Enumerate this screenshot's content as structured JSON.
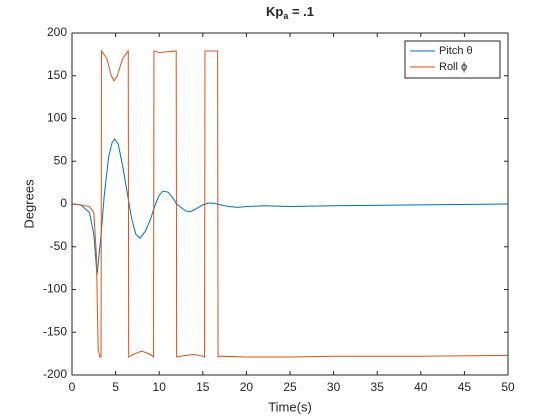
{
  "chart_data": {
    "type": "line",
    "title": "Kp",
    "title_subscript": "a",
    "title_suffix": " = .1",
    "xlabel": "Time(s)",
    "ylabel": "Degrees",
    "xlim": [
      0,
      50
    ],
    "xticks": [
      0,
      5,
      10,
      15,
      20,
      25,
      30,
      35,
      40,
      45,
      50
    ],
    "ylim": [
      -200,
      200
    ],
    "yticks": [
      -200,
      -150,
      -100,
      -50,
      0,
      50,
      100,
      150,
      200
    ],
    "legend": "top-right",
    "series": [
      {
        "name": "Pitch θ",
        "color": "#0072bd",
        "x": [
          0,
          1,
          2,
          2.5,
          2.87,
          3.3,
          3.7,
          4.2,
          4.6,
          4.9,
          5.3,
          5.8,
          6.3,
          6.8,
          7.3,
          7.8,
          8.4,
          9,
          9.5,
          10,
          10.4,
          11,
          11.5,
          12,
          13,
          13.5,
          14,
          15,
          15.6,
          16.2,
          17,
          18,
          19,
          20,
          22,
          25,
          30,
          40,
          50
        ],
        "values": [
          0,
          -1,
          -10,
          -35,
          -83,
          -40,
          10,
          55,
          72,
          76,
          70,
          45,
          15,
          -15,
          -35,
          -40,
          -32,
          -18,
          -2,
          10,
          15,
          14,
          8,
          0,
          -8,
          -9,
          -7,
          -1,
          1,
          1,
          -1,
          -3,
          -4,
          -3,
          -2,
          -3,
          -2,
          -1,
          0
        ]
      },
      {
        "name": "Roll ϕ",
        "color": "#d95319",
        "x": [
          0,
          1,
          2,
          2.5,
          2.8,
          3.0,
          3.2,
          3.33,
          3.38,
          4,
          4.5,
          4.8,
          5.2,
          5.8,
          6.45,
          6.5,
          7,
          8,
          9,
          9.35,
          9.4,
          10,
          11,
          11.95,
          12.0,
          13,
          14,
          15,
          15.2,
          15.25,
          16,
          16.7,
          16.75,
          17,
          20,
          25,
          30,
          40,
          50
        ],
        "values": [
          0,
          -1,
          -3,
          -10,
          -60,
          -170,
          -179,
          -179,
          179,
          170,
          150,
          144,
          150,
          170,
          179,
          -179,
          -176,
          -172,
          -176,
          -179,
          179,
          177,
          178,
          179,
          -179,
          -177,
          -176,
          -178,
          -179,
          179,
          179,
          179,
          -179,
          -178,
          -179,
          -179,
          -178,
          -178,
          -177
        ]
      }
    ]
  }
}
